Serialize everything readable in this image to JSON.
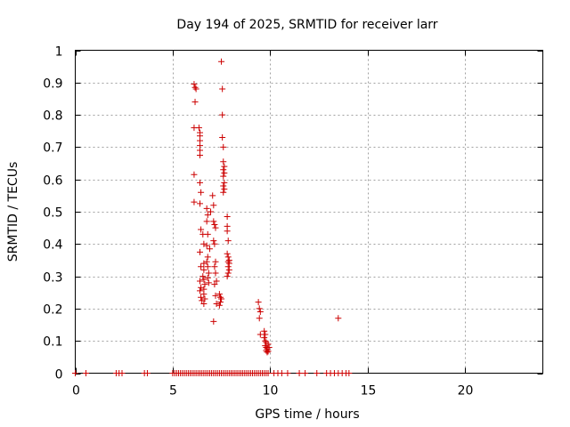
{
  "chart_data": {
    "type": "scatter",
    "title": "Day 194 of 2025, SRMTID for receiver larr",
    "xlabel": "GPS time / hours",
    "ylabel": "SRMTID / TECUs",
    "xlim": [
      0,
      24
    ],
    "ylim": [
      0,
      1
    ],
    "xticks": [
      0,
      5,
      10,
      15,
      20
    ],
    "xtick_labels": [
      "0",
      "5",
      "10",
      "15",
      "20"
    ],
    "yticks": [
      0,
      0.1,
      0.2,
      0.3,
      0.4,
      0.5,
      0.6,
      0.7,
      0.8,
      0.9,
      1
    ],
    "ytick_labels": [
      "0",
      "0.1",
      "0.2",
      "0.3",
      "0.4",
      "0.5",
      "0.6",
      "0.7",
      "0.8",
      "0.9",
      "1"
    ],
    "grid": true,
    "marker": "+",
    "color": "#cc0000",
    "series": [
      {
        "name": "SRMTID",
        "points": [
          [
            0.0,
            0
          ],
          [
            0.55,
            0
          ],
          [
            2.1,
            0
          ],
          [
            2.25,
            0
          ],
          [
            2.4,
            0
          ],
          [
            3.55,
            0
          ],
          [
            3.7,
            0
          ],
          [
            5.0,
            0
          ],
          [
            5.1,
            0
          ],
          [
            5.2,
            0
          ],
          [
            5.3,
            0
          ],
          [
            5.4,
            0
          ],
          [
            5.5,
            0
          ],
          [
            5.6,
            0
          ],
          [
            5.7,
            0
          ],
          [
            5.8,
            0
          ],
          [
            5.9,
            0
          ],
          [
            6.0,
            0
          ],
          [
            6.1,
            0
          ],
          [
            6.2,
            0
          ],
          [
            6.3,
            0
          ],
          [
            6.4,
            0
          ],
          [
            6.5,
            0
          ],
          [
            6.6,
            0
          ],
          [
            6.7,
            0
          ],
          [
            6.8,
            0
          ],
          [
            6.9,
            0
          ],
          [
            7.0,
            0
          ],
          [
            7.1,
            0
          ],
          [
            7.2,
            0
          ],
          [
            7.3,
            0
          ],
          [
            7.4,
            0
          ],
          [
            7.5,
            0
          ],
          [
            7.6,
            0
          ],
          [
            7.7,
            0
          ],
          [
            7.8,
            0
          ],
          [
            7.9,
            0
          ],
          [
            8.0,
            0
          ],
          [
            8.1,
            0
          ],
          [
            8.2,
            0
          ],
          [
            8.3,
            0
          ],
          [
            8.4,
            0
          ],
          [
            8.5,
            0
          ],
          [
            8.6,
            0
          ],
          [
            8.7,
            0
          ],
          [
            8.8,
            0
          ],
          [
            8.9,
            0
          ],
          [
            9.0,
            0
          ],
          [
            9.1,
            0
          ],
          [
            9.2,
            0
          ],
          [
            9.3,
            0
          ],
          [
            9.4,
            0
          ],
          [
            9.5,
            0
          ],
          [
            9.6,
            0
          ],
          [
            9.7,
            0
          ],
          [
            9.8,
            0
          ],
          [
            9.9,
            0
          ],
          [
            10.2,
            0
          ],
          [
            10.4,
            0
          ],
          [
            10.6,
            0
          ],
          [
            10.9,
            0
          ],
          [
            11.5,
            0
          ],
          [
            11.8,
            0
          ],
          [
            12.4,
            0
          ],
          [
            12.9,
            0
          ],
          [
            13.1,
            0
          ],
          [
            13.3,
            0
          ],
          [
            13.5,
            0
          ],
          [
            13.7,
            0
          ],
          [
            13.9,
            0
          ],
          [
            14.05,
            0
          ],
          [
            6.1,
            0.895
          ],
          [
            6.15,
            0.885
          ],
          [
            6.2,
            0.88
          ],
          [
            6.15,
            0.84
          ],
          [
            6.1,
            0.76
          ],
          [
            6.1,
            0.615
          ],
          [
            6.1,
            0.53
          ],
          [
            6.35,
            0.76
          ],
          [
            6.4,
            0.745
          ],
          [
            6.4,
            0.735
          ],
          [
            6.4,
            0.72
          ],
          [
            6.4,
            0.705
          ],
          [
            6.4,
            0.69
          ],
          [
            6.4,
            0.675
          ],
          [
            6.4,
            0.59
          ],
          [
            6.45,
            0.56
          ],
          [
            6.4,
            0.525
          ],
          [
            6.45,
            0.445
          ],
          [
            6.4,
            0.375
          ],
          [
            6.45,
            0.33
          ],
          [
            6.4,
            0.285
          ],
          [
            6.45,
            0.265
          ],
          [
            6.4,
            0.255
          ],
          [
            6.45,
            0.235
          ],
          [
            6.5,
            0.225
          ],
          [
            6.55,
            0.43
          ],
          [
            6.6,
            0.4
          ],
          [
            6.6,
            0.34
          ],
          [
            6.6,
            0.32
          ],
          [
            6.55,
            0.3
          ],
          [
            6.6,
            0.29
          ],
          [
            6.65,
            0.275
          ],
          [
            6.6,
            0.26
          ],
          [
            6.6,
            0.245
          ],
          [
            6.65,
            0.23
          ],
          [
            6.6,
            0.215
          ],
          [
            6.75,
            0.51
          ],
          [
            6.8,
            0.49
          ],
          [
            6.75,
            0.47
          ],
          [
            6.8,
            0.43
          ],
          [
            6.75,
            0.395
          ],
          [
            6.8,
            0.36
          ],
          [
            6.75,
            0.345
          ],
          [
            6.8,
            0.33
          ],
          [
            6.85,
            0.31
          ],
          [
            6.8,
            0.295
          ],
          [
            6.85,
            0.28
          ],
          [
            6.9,
            0.385
          ],
          [
            6.95,
            0.5
          ],
          [
            7.05,
            0.55
          ],
          [
            7.1,
            0.52
          ],
          [
            7.1,
            0.47
          ],
          [
            7.15,
            0.46
          ],
          [
            7.2,
            0.45
          ],
          [
            7.1,
            0.41
          ],
          [
            7.15,
            0.4
          ],
          [
            7.2,
            0.345
          ],
          [
            7.15,
            0.33
          ],
          [
            7.2,
            0.31
          ],
          [
            7.25,
            0.285
          ],
          [
            7.15,
            0.275
          ],
          [
            7.2,
            0.24
          ],
          [
            7.25,
            0.215
          ],
          [
            7.1,
            0.16
          ],
          [
            7.4,
            0.245
          ],
          [
            7.45,
            0.235
          ],
          [
            7.5,
            0.23
          ],
          [
            7.45,
            0.22
          ],
          [
            7.4,
            0.21
          ],
          [
            7.5,
            0.965
          ],
          [
            7.55,
            0.88
          ],
          [
            7.55,
            0.8
          ],
          [
            7.55,
            0.73
          ],
          [
            7.6,
            0.7
          ],
          [
            7.6,
            0.655
          ],
          [
            7.65,
            0.64
          ],
          [
            7.6,
            0.63
          ],
          [
            7.65,
            0.62
          ],
          [
            7.6,
            0.61
          ],
          [
            7.65,
            0.59
          ],
          [
            7.6,
            0.58
          ],
          [
            7.65,
            0.57
          ],
          [
            7.6,
            0.56
          ],
          [
            7.8,
            0.485
          ],
          [
            7.8,
            0.455
          ],
          [
            7.8,
            0.44
          ],
          [
            7.85,
            0.41
          ],
          [
            7.8,
            0.37
          ],
          [
            7.85,
            0.36
          ],
          [
            7.9,
            0.35
          ],
          [
            7.85,
            0.345
          ],
          [
            7.9,
            0.34
          ],
          [
            7.85,
            0.33
          ],
          [
            7.9,
            0.32
          ],
          [
            7.85,
            0.31
          ],
          [
            7.8,
            0.3
          ],
          [
            9.4,
            0.22
          ],
          [
            9.45,
            0.2
          ],
          [
            9.5,
            0.19
          ],
          [
            9.45,
            0.17
          ],
          [
            9.5,
            0.12
          ],
          [
            9.7,
            0.13
          ],
          [
            9.75,
            0.12
          ],
          [
            9.7,
            0.11
          ],
          [
            9.75,
            0.1
          ],
          [
            9.8,
            0.095
          ],
          [
            9.75,
            0.085
          ],
          [
            9.8,
            0.08
          ],
          [
            9.85,
            0.075
          ],
          [
            9.8,
            0.07
          ],
          [
            9.9,
            0.068
          ],
          [
            9.85,
            0.065
          ],
          [
            9.95,
            0.08
          ],
          [
            9.9,
            0.09
          ],
          [
            13.5,
            0.17
          ]
        ]
      }
    ]
  }
}
